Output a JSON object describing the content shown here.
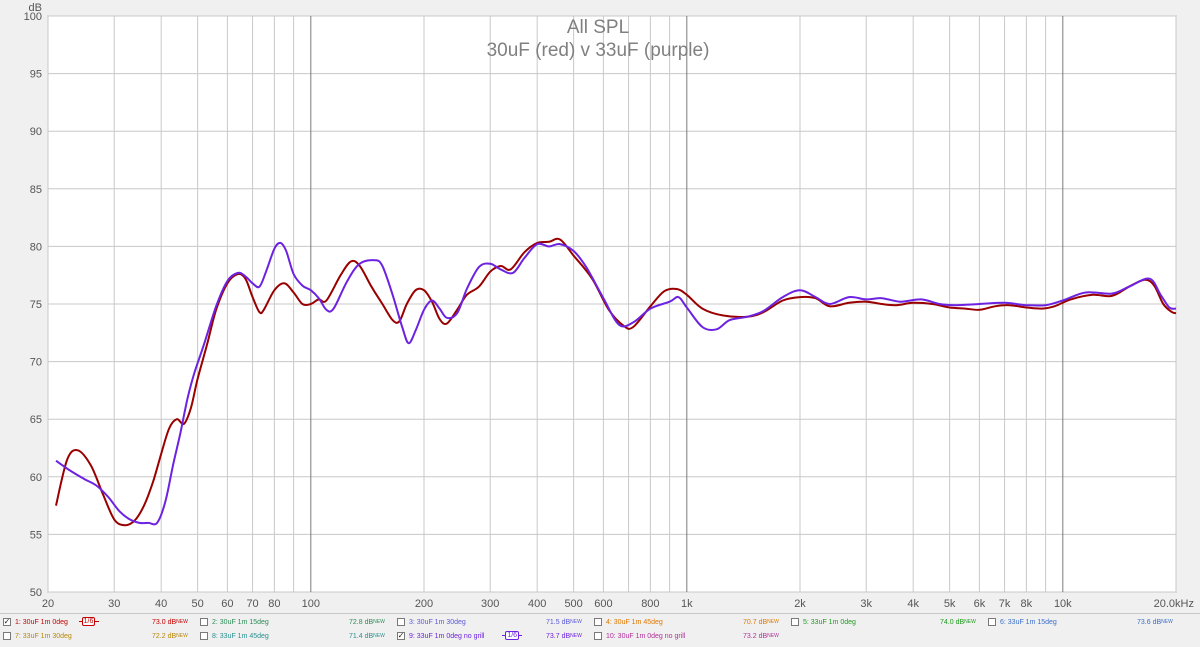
{
  "chart_data": {
    "type": "line",
    "title": "All SPL",
    "subtitle": "30uF (red) v 33uF (purple)",
    "ylabel": "dB",
    "xlabel": "",
    "x_scale": "log",
    "xlim": [
      20,
      20000
    ],
    "ylim": [
      50,
      100
    ],
    "y_ticks": [
      50,
      55,
      60,
      65,
      70,
      75,
      80,
      85,
      90,
      95,
      100
    ],
    "x_ticks": [
      {
        "value": 20,
        "label": "20"
      },
      {
        "value": 30,
        "label": "30"
      },
      {
        "value": 40,
        "label": "40"
      },
      {
        "value": 50,
        "label": "50"
      },
      {
        "value": 60,
        "label": "60"
      },
      {
        "value": 70,
        "label": "70"
      },
      {
        "value": 80,
        "label": "80"
      },
      {
        "value": 100,
        "label": "100"
      },
      {
        "value": 200,
        "label": "200"
      },
      {
        "value": 300,
        "label": "300"
      },
      {
        "value": 400,
        "label": "400"
      },
      {
        "value": 500,
        "label": "500"
      },
      {
        "value": 600,
        "label": "600"
      },
      {
        "value": 800,
        "label": "800"
      },
      {
        "value": 1000,
        "label": "1k"
      },
      {
        "value": 2000,
        "label": "2k"
      },
      {
        "value": 3000,
        "label": "3k"
      },
      {
        "value": 4000,
        "label": "4k"
      },
      {
        "value": 5000,
        "label": "5k"
      },
      {
        "value": 6000,
        "label": "6k"
      },
      {
        "value": 7000,
        "label": "7k"
      },
      {
        "value": 8000,
        "label": "8k"
      },
      {
        "value": 10000,
        "label": "10k"
      },
      {
        "value": 20000,
        "label": "20.0kHz"
      }
    ],
    "grid": true,
    "series": [
      {
        "name": "1: 30uF 1m 0deg",
        "color": "#990000",
        "points": [
          [
            21,
            57.5
          ],
          [
            22.5,
            61.5
          ],
          [
            24,
            62.3
          ],
          [
            26,
            61
          ],
          [
            28,
            58.5
          ],
          [
            30,
            56.3
          ],
          [
            32,
            55.8
          ],
          [
            34,
            56.2
          ],
          [
            36,
            57.5
          ],
          [
            38,
            59.5
          ],
          [
            40,
            62
          ],
          [
            42,
            64.2
          ],
          [
            44,
            65
          ],
          [
            46,
            64.6
          ],
          [
            48,
            66
          ],
          [
            50,
            68.5
          ],
          [
            53,
            71.5
          ],
          [
            56,
            74.5
          ],
          [
            60,
            76.8
          ],
          [
            64,
            77.6
          ],
          [
            67,
            77.2
          ],
          [
            70,
            75.6
          ],
          [
            73,
            74.3
          ],
          [
            75,
            74.5
          ],
          [
            80,
            76.2
          ],
          [
            85,
            76.8
          ],
          [
            90,
            76
          ],
          [
            95,
            75
          ],
          [
            100,
            75
          ],
          [
            105,
            75.4
          ],
          [
            110,
            75.3
          ],
          [
            120,
            77.5
          ],
          [
            128,
            78.7
          ],
          [
            135,
            78.3
          ],
          [
            145,
            76.5
          ],
          [
            155,
            75
          ],
          [
            165,
            73.6
          ],
          [
            172,
            73.5
          ],
          [
            180,
            75
          ],
          [
            190,
            76.2
          ],
          [
            200,
            76.2
          ],
          [
            210,
            75.2
          ],
          [
            220,
            73.7
          ],
          [
            230,
            73.3
          ],
          [
            245,
            74.5
          ],
          [
            260,
            75.8
          ],
          [
            280,
            76.5
          ],
          [
            300,
            77.8
          ],
          [
            320,
            78.3
          ],
          [
            340,
            78
          ],
          [
            370,
            79.5
          ],
          [
            400,
            80.3
          ],
          [
            430,
            80.4
          ],
          [
            460,
            80.6
          ],
          [
            500,
            79.2
          ],
          [
            560,
            77.2
          ],
          [
            620,
            74.5
          ],
          [
            680,
            73.1
          ],
          [
            720,
            73
          ],
          [
            800,
            74.8
          ],
          [
            870,
            76.1
          ],
          [
            940,
            76.3
          ],
          [
            1000,
            75.8
          ],
          [
            1100,
            74.6
          ],
          [
            1250,
            74
          ],
          [
            1450,
            73.9
          ],
          [
            1600,
            74.3
          ],
          [
            1800,
            75.3
          ],
          [
            2000,
            75.6
          ],
          [
            2200,
            75.5
          ],
          [
            2400,
            74.8
          ],
          [
            2700,
            75.1
          ],
          [
            3000,
            75.2
          ],
          [
            3300,
            75
          ],
          [
            3600,
            74.9
          ],
          [
            4000,
            75.1
          ],
          [
            4500,
            75
          ],
          [
            5000,
            74.7
          ],
          [
            5500,
            74.6
          ],
          [
            6000,
            74.5
          ],
          [
            6600,
            74.8
          ],
          [
            7200,
            74.9
          ],
          [
            8000,
            74.7
          ],
          [
            8800,
            74.6
          ],
          [
            9500,
            74.8
          ],
          [
            10500,
            75.4
          ],
          [
            12000,
            75.8
          ],
          [
            13500,
            75.7
          ],
          [
            15000,
            76.5
          ],
          [
            16500,
            77.1
          ],
          [
            17500,
            76.6
          ],
          [
            18500,
            75
          ],
          [
            19500,
            74.3
          ],
          [
            20000,
            74.2
          ]
        ]
      },
      {
        "name": "9: 33uF 1m 0deg no grill",
        "color": "#6c22e0",
        "points": [
          [
            21,
            61.4
          ],
          [
            23,
            60.5
          ],
          [
            25,
            59.8
          ],
          [
            27,
            59.2
          ],
          [
            29,
            58.2
          ],
          [
            31,
            57
          ],
          [
            33,
            56.3
          ],
          [
            35,
            56
          ],
          [
            37,
            56
          ],
          [
            39,
            56
          ],
          [
            41,
            57.8
          ],
          [
            43,
            61
          ],
          [
            45,
            63.8
          ],
          [
            47,
            66.8
          ],
          [
            49,
            69
          ],
          [
            52,
            71.5
          ],
          [
            56,
            74.8
          ],
          [
            60,
            77
          ],
          [
            64,
            77.7
          ],
          [
            67,
            77.4
          ],
          [
            70,
            76.8
          ],
          [
            73,
            76.5
          ],
          [
            76,
            77.8
          ],
          [
            80,
            79.8
          ],
          [
            83,
            80.3
          ],
          [
            86,
            79.6
          ],
          [
            90,
            77.6
          ],
          [
            95,
            76.6
          ],
          [
            100,
            76.2
          ],
          [
            105,
            75.5
          ],
          [
            110,
            74.5
          ],
          [
            115,
            74.6
          ],
          [
            125,
            77
          ],
          [
            135,
            78.5
          ],
          [
            148,
            78.8
          ],
          [
            155,
            78.3
          ],
          [
            165,
            75.8
          ],
          [
            175,
            73
          ],
          [
            182,
            71.6
          ],
          [
            190,
            72.7
          ],
          [
            200,
            74.5
          ],
          [
            210,
            75.3
          ],
          [
            220,
            74.6
          ],
          [
            230,
            73.8
          ],
          [
            245,
            74.2
          ],
          [
            260,
            76.3
          ],
          [
            280,
            78.2
          ],
          [
            300,
            78.5
          ],
          [
            320,
            78
          ],
          [
            345,
            77.7
          ],
          [
            370,
            79
          ],
          [
            400,
            80.2
          ],
          [
            430,
            80
          ],
          [
            460,
            80.2
          ],
          [
            500,
            79.6
          ],
          [
            540,
            78.2
          ],
          [
            600,
            75.5
          ],
          [
            660,
            73.2
          ],
          [
            720,
            73.4
          ],
          [
            800,
            74.6
          ],
          [
            900,
            75.2
          ],
          [
            950,
            75.6
          ],
          [
            1000,
            74.7
          ],
          [
            1100,
            73
          ],
          [
            1200,
            72.8
          ],
          [
            1300,
            73.6
          ],
          [
            1450,
            73.9
          ],
          [
            1600,
            74.4
          ],
          [
            1800,
            75.6
          ],
          [
            2000,
            76.2
          ],
          [
            2200,
            75.6
          ],
          [
            2400,
            75
          ],
          [
            2700,
            75.6
          ],
          [
            3000,
            75.4
          ],
          [
            3300,
            75.5
          ],
          [
            3700,
            75.2
          ],
          [
            4200,
            75.4
          ],
          [
            4700,
            75
          ],
          [
            5200,
            74.9
          ],
          [
            6000,
            75
          ],
          [
            7000,
            75.1
          ],
          [
            8000,
            74.9
          ],
          [
            9000,
            74.9
          ],
          [
            10000,
            75.3
          ],
          [
            11500,
            76
          ],
          [
            13500,
            75.9
          ],
          [
            15000,
            76.5
          ],
          [
            17000,
            77.2
          ],
          [
            18200,
            75.8
          ],
          [
            19200,
            74.7
          ],
          [
            20000,
            74.6
          ]
        ]
      }
    ]
  },
  "legend": {
    "items": [
      {
        "label": "1: 30uF 1m 0deg",
        "value": "73.0 dB",
        "badge": "NEW",
        "color": "#c40000",
        "checked": true,
        "smoothing": "1/6"
      },
      {
        "label": "2: 30uF 1m 15deg",
        "value": "72.8 dB",
        "badge": "NEW",
        "color": "#2e8b57",
        "checked": false,
        "smoothing": ""
      },
      {
        "label": "3: 30uF 1m 30deg",
        "value": "71.5 dB",
        "badge": "NEW",
        "color": "#5a5ad8",
        "checked": false,
        "smoothing": ""
      },
      {
        "label": "4: 30uF 1m 45deg",
        "value": "70.7 dB",
        "badge": "NEW",
        "color": "#e07800",
        "checked": false,
        "smoothing": ""
      },
      {
        "label": "5: 33uF 1m 0deg",
        "value": "74.0 dB",
        "badge": "NEW",
        "color": "#1e9a1e",
        "checked": false,
        "smoothing": ""
      },
      {
        "label": "6: 33uF 1m 15deg",
        "value": "73.6 dB",
        "badge": "NEW",
        "color": "#3a6fc8",
        "checked": false,
        "smoothing": ""
      },
      {
        "label": "7: 33uF 1m 30deg",
        "value": "72.2 dB",
        "badge": "NEW",
        "color": "#b8860b",
        "checked": false,
        "smoothing": ""
      },
      {
        "label": "8: 33uF 1m 45deg",
        "value": "71.4 dB",
        "badge": "NEW",
        "color": "#2a8f8f",
        "checked": false,
        "smoothing": ""
      },
      {
        "label": "9: 33uF 1m 0deg no grill",
        "value": "73.7 dB",
        "badge": "NEW",
        "color": "#6c22e0",
        "checked": true,
        "smoothing": "1/6"
      },
      {
        "label": "10: 30uF 1m 0deg no grill",
        "value": "73.2 dB",
        "badge": "NEW",
        "color": "#b0309a",
        "checked": false,
        "smoothing": ""
      }
    ]
  }
}
